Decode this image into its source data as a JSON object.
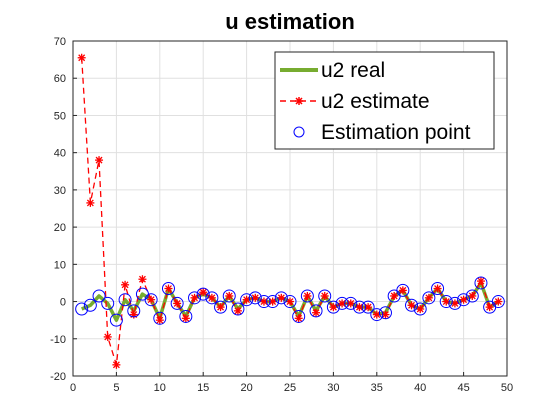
{
  "chart_data": {
    "type": "line",
    "title": "u estimation",
    "xlabel": "",
    "ylabel": "",
    "xlim": [
      0,
      50
    ],
    "ylim": [
      -20,
      70
    ],
    "xticks": [
      0,
      5,
      10,
      15,
      20,
      25,
      30,
      35,
      40,
      45,
      50
    ],
    "yticks": [
      -20,
      -10,
      0,
      10,
      20,
      30,
      40,
      50,
      60,
      70
    ],
    "grid": true,
    "legend_position": "top-right",
    "x": [
      1,
      2,
      3,
      4,
      5,
      6,
      7,
      8,
      9,
      10,
      11,
      12,
      13,
      14,
      15,
      16,
      17,
      18,
      19,
      20,
      21,
      22,
      23,
      24,
      25,
      26,
      27,
      28,
      29,
      30,
      31,
      32,
      33,
      34,
      35,
      36,
      37,
      38,
      39,
      40,
      41,
      42,
      43,
      44,
      45,
      46,
      47,
      48,
      49
    ],
    "series": [
      {
        "name": "u2 real",
        "color": "#77ac30",
        "style": "solid-thick",
        "values": [
          -2,
          -1,
          1.5,
          -0.5,
          -5,
          0.5,
          -2.5,
          2,
          0.5,
          -4.5,
          3.5,
          -0.5,
          -4,
          1,
          2,
          1,
          -1.5,
          1.5,
          -2,
          0.5,
          1,
          0,
          0,
          1,
          0,
          -4,
          1.5,
          -2.5,
          1.5,
          -1.5,
          -0.5,
          -0.5,
          -1.5,
          -1.5,
          -3.5,
          -3,
          1.5,
          3,
          -1,
          -2,
          1,
          3.5,
          0,
          -0.5,
          0.5,
          1.5,
          5,
          -1.5,
          0
        ]
      },
      {
        "name": "u2 estimate",
        "color": "#ff0000",
        "style": "dashed-star",
        "values": [
          65.5,
          26.5,
          38,
          -9.5,
          -17,
          4.5,
          -3.5,
          6,
          0.5,
          -5,
          3.5,
          -0.5,
          -4.5,
          1,
          2.5,
          1,
          -1.5,
          1.5,
          -2.5,
          0.5,
          1,
          0,
          0,
          1,
          0,
          -4.5,
          1.5,
          -3,
          1.5,
          -1.5,
          -0.5,
          -0.5,
          -1.5,
          -1.5,
          -3.5,
          -3.5,
          1.5,
          3,
          -1,
          -2,
          1,
          3.5,
          0,
          -0.5,
          0.5,
          1.5,
          5.5,
          -1.5,
          0
        ]
      },
      {
        "name": "Estimation point",
        "color": "#0000ff",
        "style": "circle-markers",
        "values": [
          -2,
          -1,
          1.5,
          -0.5,
          -5,
          0.5,
          -2.5,
          2,
          0.5,
          -4.5,
          3.5,
          -0.5,
          -4,
          1,
          2,
          1,
          -1.5,
          1.5,
          -2,
          0.5,
          1,
          0,
          0,
          1,
          0,
          -4,
          1.5,
          -2.5,
          1.5,
          -1.5,
          -0.5,
          -0.5,
          -1.5,
          -1.5,
          -3.5,
          -3,
          1.5,
          3,
          -1,
          -2,
          1,
          3.5,
          0,
          -0.5,
          0.5,
          1.5,
          5,
          -1.5,
          0
        ]
      }
    ]
  }
}
